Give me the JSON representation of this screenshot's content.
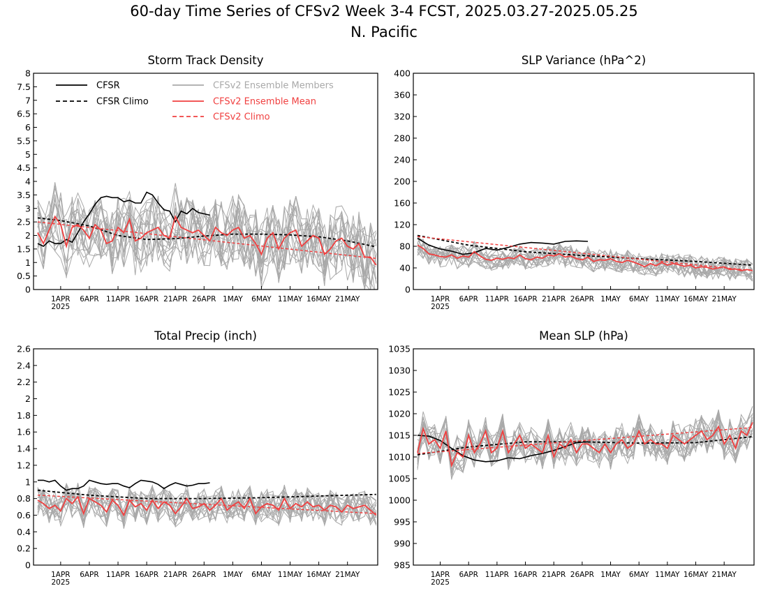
{
  "figure": {
    "title_line1": "60-day Time Series of CFSv2 Week 3-4 FCST, 2025.03.27-2025.05.25",
    "title_line2": "N. Pacific"
  },
  "colors": {
    "cfsr": "#000000",
    "ensemble_members": "#a9a9a9",
    "ensemble_mean": "#f04040",
    "cfsv2_climo": "#f04040"
  },
  "legend": {
    "cfsr": "CFSR",
    "cfsr_climo": "CFSR Climo",
    "members": "CFSv2 Ensemble Members",
    "mean": "CFSv2 Ensemble Mean",
    "cfsv2_climo": "CFSv2 Climo"
  },
  "x_axis": {
    "tick_labels": [
      "1APR",
      "6APR",
      "11APR",
      "16APR",
      "21APR",
      "26APR",
      "1MAY",
      "6MAY",
      "11MAY",
      "16MAY",
      "21MAY"
    ],
    "tick_days": [
      5,
      10,
      15,
      20,
      25,
      30,
      35,
      40,
      45,
      50,
      55
    ],
    "year_label": "2025",
    "range": [
      1,
      60
    ]
  },
  "chart_data": [
    {
      "type": "line",
      "title": "Storm Track Density",
      "ylim": [
        0,
        8
      ],
      "yticks": [
        "0",
        "0.5",
        "1",
        "1.5",
        "2",
        "2.5",
        "3",
        "3.5",
        "4",
        "4.5",
        "5",
        "5.5",
        "6",
        "6.5",
        "7",
        "7.5",
        "8"
      ],
      "series": [
        {
          "name": "CFSR",
          "x": [
            1,
            2,
            3,
            4,
            5,
            6,
            7,
            8,
            9,
            10,
            11,
            12,
            13,
            14,
            15,
            16,
            17,
            18,
            19,
            20,
            21,
            22,
            23,
            24,
            25,
            26,
            27,
            28,
            29,
            30,
            31
          ],
          "values": [
            1.7,
            1.6,
            1.8,
            1.7,
            1.7,
            1.85,
            1.75,
            2.1,
            2.5,
            2.8,
            3.15,
            3.4,
            3.45,
            3.4,
            3.4,
            3.25,
            3.3,
            3.2,
            3.2,
            3.6,
            3.5,
            3.2,
            2.95,
            2.9,
            2.5,
            2.9,
            2.8,
            3.0,
            2.85,
            2.8,
            2.75
          ]
        },
        {
          "name": "CFSR Climo",
          "x": [
            1,
            5,
            10,
            15,
            20,
            25,
            30,
            35,
            40,
            45,
            50,
            55,
            60
          ],
          "values": [
            2.65,
            2.55,
            2.35,
            2.0,
            1.85,
            1.88,
            1.98,
            2.05,
            2.05,
            2.02,
            1.95,
            1.8,
            1.58
          ]
        },
        {
          "name": "CFSv2 Ensemble Mean",
          "x": [
            1,
            2,
            3,
            4,
            5,
            6,
            7,
            8,
            9,
            10,
            11,
            12,
            13,
            14,
            15,
            16,
            17,
            18,
            19,
            20,
            21,
            22,
            23,
            24,
            25,
            26,
            27,
            28,
            29,
            30,
            31,
            32,
            33,
            34,
            35,
            36,
            37,
            38,
            39,
            40,
            41,
            42,
            43,
            44,
            45,
            46,
            47,
            48,
            49,
            50,
            51,
            52,
            53,
            54,
            55,
            56,
            57,
            58,
            59,
            60
          ],
          "values": [
            2.1,
            1.7,
            2.2,
            2.7,
            2.4,
            1.6,
            2.3,
            2.4,
            2.2,
            1.9,
            2.4,
            2.2,
            1.7,
            1.8,
            2.3,
            2.1,
            2.6,
            1.8,
            1.9,
            2.1,
            2.2,
            2.3,
            2.0,
            1.9,
            2.7,
            2.3,
            2.2,
            2.1,
            2.2,
            2.0,
            1.8,
            2.3,
            2.1,
            2.0,
            2.2,
            2.3,
            1.9,
            2.0,
            1.7,
            1.3,
            1.9,
            2.1,
            1.5,
            1.9,
            2.1,
            2.2,
            1.6,
            1.8,
            2.0,
            1.9,
            1.3,
            1.5,
            1.8,
            1.9,
            1.6,
            1.5,
            1.7,
            1.2,
            1.2,
            0.9
          ]
        },
        {
          "name": "CFSv2 Climo",
          "x": [
            1,
            60
          ],
          "values": [
            2.5,
            1.15
          ]
        }
      ]
    },
    {
      "type": "line",
      "title": "SLP Variance (hPa^2)",
      "ylim": [
        0,
        400
      ],
      "yticks": [
        "0",
        "40",
        "80",
        "120",
        "160",
        "200",
        "240",
        "280",
        "320",
        "360",
        "400"
      ],
      "series": [
        {
          "name": "CFSR",
          "x": [
            1,
            3,
            5,
            7,
            9,
            11,
            13,
            15,
            17,
            19,
            21,
            23,
            25,
            27,
            29,
            31
          ],
          "values": [
            95,
            82,
            75,
            71,
            65,
            68,
            76,
            73,
            78,
            84,
            87,
            86,
            84,
            89,
            90,
            89
          ]
        },
        {
          "name": "CFSR Climo",
          "x": [
            1,
            10,
            20,
            30,
            40,
            50,
            60
          ],
          "values": [
            100,
            82,
            70,
            63,
            57,
            52,
            45
          ]
        },
        {
          "name": "CFSv2 Ensemble Mean",
          "x": [
            1,
            2,
            3,
            4,
            5,
            6,
            7,
            8,
            9,
            10,
            11,
            12,
            13,
            14,
            15,
            16,
            17,
            18,
            19,
            20,
            21,
            22,
            23,
            24,
            25,
            26,
            27,
            28,
            29,
            30,
            31,
            32,
            33,
            34,
            35,
            36,
            37,
            38,
            39,
            40,
            41,
            42,
            43,
            44,
            45,
            46,
            47,
            48,
            49,
            50,
            51,
            52,
            53,
            54,
            55,
            56,
            57,
            58,
            59,
            60
          ],
          "values": [
            82,
            76,
            66,
            64,
            61,
            60,
            64,
            58,
            62,
            60,
            70,
            62,
            56,
            54,
            58,
            56,
            59,
            57,
            64,
            57,
            55,
            60,
            58,
            64,
            62,
            66,
            60,
            62,
            57,
            55,
            60,
            52,
            55,
            54,
            57,
            52,
            50,
            54,
            51,
            47,
            42,
            48,
            44,
            50,
            45,
            48,
            46,
            43,
            45,
            40,
            42,
            41,
            38,
            40,
            42,
            37,
            38,
            35,
            37,
            35
          ]
        },
        {
          "name": "CFSv2 Climo",
          "x": [
            1,
            60
          ],
          "values": [
            98,
            35
          ]
        }
      ]
    },
    {
      "type": "line",
      "title": "Total Precip (inch)",
      "ylim": [
        0,
        2.6
      ],
      "yticks": [
        "0",
        "0.2",
        "0.4",
        "0.6",
        "0.8",
        "1",
        "1.2",
        "1.4",
        "1.6",
        "1.8",
        "2",
        "2.2",
        "2.4",
        "2.6"
      ],
      "series": [
        {
          "name": "CFSR",
          "x": [
            1,
            2,
            3,
            4,
            5,
            6,
            7,
            8,
            9,
            10,
            11,
            12,
            13,
            14,
            15,
            16,
            17,
            18,
            19,
            20,
            21,
            22,
            23,
            24,
            25,
            26,
            27,
            28,
            29,
            30,
            31
          ],
          "values": [
            1.02,
            1.02,
            1.0,
            1.02,
            0.95,
            0.9,
            0.92,
            0.92,
            0.95,
            1.02,
            1.0,
            0.98,
            0.97,
            0.98,
            0.98,
            0.95,
            0.93,
            0.98,
            1.02,
            1.01,
            1.0,
            0.97,
            0.92,
            0.96,
            0.99,
            0.97,
            0.95,
            0.96,
            0.98,
            0.98,
            0.99
          ]
        },
        {
          "name": "CFSR Climo",
          "x": [
            1,
            10,
            20,
            30,
            40,
            50,
            60
          ],
          "values": [
            0.9,
            0.84,
            0.8,
            0.8,
            0.81,
            0.83,
            0.85
          ]
        },
        {
          "name": "CFSv2 Ensemble Mean",
          "x": [
            1,
            2,
            3,
            4,
            5,
            6,
            7,
            8,
            9,
            10,
            11,
            12,
            13,
            14,
            15,
            16,
            17,
            18,
            19,
            20,
            21,
            22,
            23,
            24,
            25,
            26,
            27,
            28,
            29,
            30,
            31,
            32,
            33,
            34,
            35,
            36,
            37,
            38,
            39,
            40,
            41,
            42,
            43,
            44,
            45,
            46,
            47,
            48,
            49,
            50,
            51,
            52,
            53,
            54,
            55,
            56,
            57,
            58,
            59,
            60
          ],
          "values": [
            0.78,
            0.74,
            0.68,
            0.72,
            0.65,
            0.8,
            0.74,
            0.82,
            0.62,
            0.8,
            0.76,
            0.72,
            0.64,
            0.78,
            0.72,
            0.6,
            0.78,
            0.7,
            0.74,
            0.66,
            0.78,
            0.68,
            0.76,
            0.72,
            0.62,
            0.7,
            0.8,
            0.68,
            0.7,
            0.74,
            0.66,
            0.72,
            0.8,
            0.66,
            0.72,
            0.76,
            0.68,
            0.8,
            0.62,
            0.7,
            0.74,
            0.72,
            0.66,
            0.8,
            0.68,
            0.74,
            0.7,
            0.76,
            0.7,
            0.72,
            0.66,
            0.72,
            0.7,
            0.64,
            0.72,
            0.68,
            0.7,
            0.72,
            0.66,
            0.6
          ]
        },
        {
          "name": "CFSv2 Climo",
          "x": [
            1,
            60
          ],
          "values": [
            0.84,
            0.62
          ]
        }
      ]
    },
    {
      "type": "line",
      "title": "Mean SLP (hPa)",
      "ylim": [
        985,
        1035
      ],
      "yticks": [
        "985",
        "990",
        "995",
        "1000",
        "1005",
        "1010",
        "1015",
        "1020",
        "1025",
        "1030",
        "1035"
      ],
      "series": [
        {
          "name": "CFSR",
          "x": [
            1,
            3,
            5,
            7,
            9,
            11,
            13,
            15,
            17,
            19,
            21,
            23,
            25,
            27,
            29,
            31
          ],
          "values": [
            1015,
            1014.8,
            1013.8,
            1012,
            1010.3,
            1009.3,
            1008.9,
            1009.1,
            1009.8,
            1009.6,
            1010.3,
            1010.8,
            1011.5,
            1012.4,
            1013.3,
            1013.5
          ]
        },
        {
          "name": "CFSR Climo",
          "x": [
            1,
            10,
            20,
            30,
            40,
            50,
            60
          ],
          "values": [
            1010.5,
            1012.3,
            1013.5,
            1013.5,
            1013.2,
            1013.3,
            1014.7
          ]
        },
        {
          "name": "CFSv2 Ensemble Mean",
          "x": [
            1,
            2,
            3,
            4,
            5,
            6,
            7,
            8,
            9,
            10,
            11,
            12,
            13,
            14,
            15,
            16,
            17,
            18,
            19,
            20,
            21,
            22,
            23,
            24,
            25,
            26,
            27,
            28,
            29,
            30,
            31,
            32,
            33,
            34,
            35,
            36,
            37,
            38,
            39,
            40,
            41,
            42,
            43,
            44,
            45,
            46,
            47,
            48,
            49,
            50,
            51,
            52,
            53,
            54,
            55,
            56,
            57,
            58,
            59,
            60
          ],
          "values": [
            1011,
            1016.5,
            1013,
            1014,
            1012,
            1016,
            1008,
            1011,
            1010,
            1015,
            1011,
            1013,
            1016,
            1011,
            1012,
            1016,
            1011,
            1013,
            1015,
            1012,
            1013,
            1012,
            1011,
            1015,
            1010,
            1013,
            1012,
            1014,
            1011,
            1013,
            1013,
            1012,
            1011,
            1013,
            1011,
            1013,
            1014,
            1012,
            1013,
            1016,
            1013,
            1014,
            1013,
            1013,
            1012,
            1015,
            1014,
            1013,
            1014,
            1015,
            1016,
            1014,
            1015,
            1017,
            1013,
            1015,
            1012,
            1016,
            1015,
            1018
          ]
        },
        {
          "name": "CFSv2 Climo",
          "x": [
            1,
            60
          ],
          "values": [
            1010.8,
            1016.8
          ]
        }
      ]
    }
  ]
}
